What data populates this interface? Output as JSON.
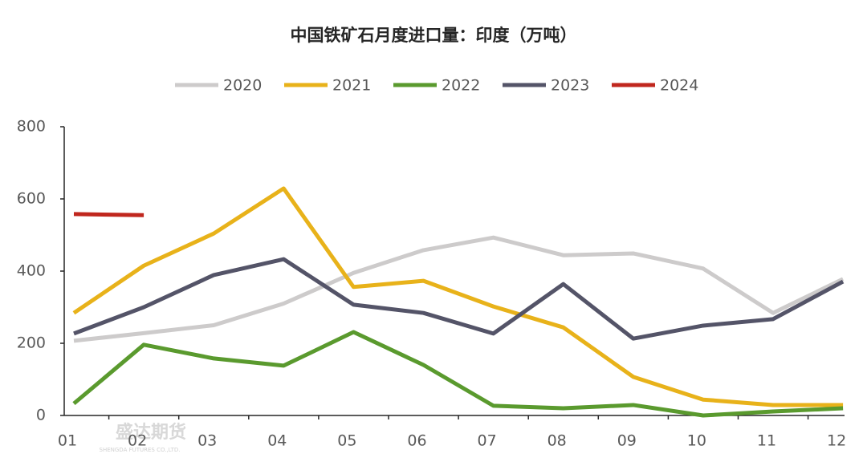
{
  "chart_data": {
    "type": "line",
    "title": "中国铁矿石月度进口量：印度（万吨）",
    "categories": [
      "01",
      "02",
      "03",
      "04",
      "05",
      "06",
      "07",
      "08",
      "09",
      "10",
      "11",
      "12"
    ],
    "series": [
      {
        "name": "2020",
        "color": "#cdcbcb",
        "values": [
          207,
          228,
          250,
          310,
          395,
          458,
          493,
          444,
          449,
          407,
          284,
          378
        ]
      },
      {
        "name": "2021",
        "color": "#e8b21a",
        "values": [
          284,
          415,
          504,
          629,
          356,
          373,
          302,
          244,
          107,
          44,
          29,
          29
        ]
      },
      {
        "name": "2022",
        "color": "#5a9a2e",
        "values": [
          33,
          196,
          158,
          138,
          231,
          140,
          27,
          20,
          29,
          0,
          11,
          20
        ]
      },
      {
        "name": "2023",
        "color": "#545468",
        "values": [
          227,
          300,
          389,
          433,
          307,
          284,
          227,
          364,
          213,
          249,
          267,
          371
        ]
      },
      {
        "name": "2024",
        "color": "#c0271e",
        "values": [
          558,
          555,
          null,
          null,
          null,
          null,
          null,
          null,
          null,
          null,
          null,
          null
        ]
      }
    ],
    "ylim": [
      0,
      800
    ],
    "yticks": [
      0,
      200,
      400,
      600,
      800
    ],
    "legend": "top",
    "watermark": "盛达期货",
    "watermark_sub": "SHENGDA FUTURES CO.,LTD."
  }
}
